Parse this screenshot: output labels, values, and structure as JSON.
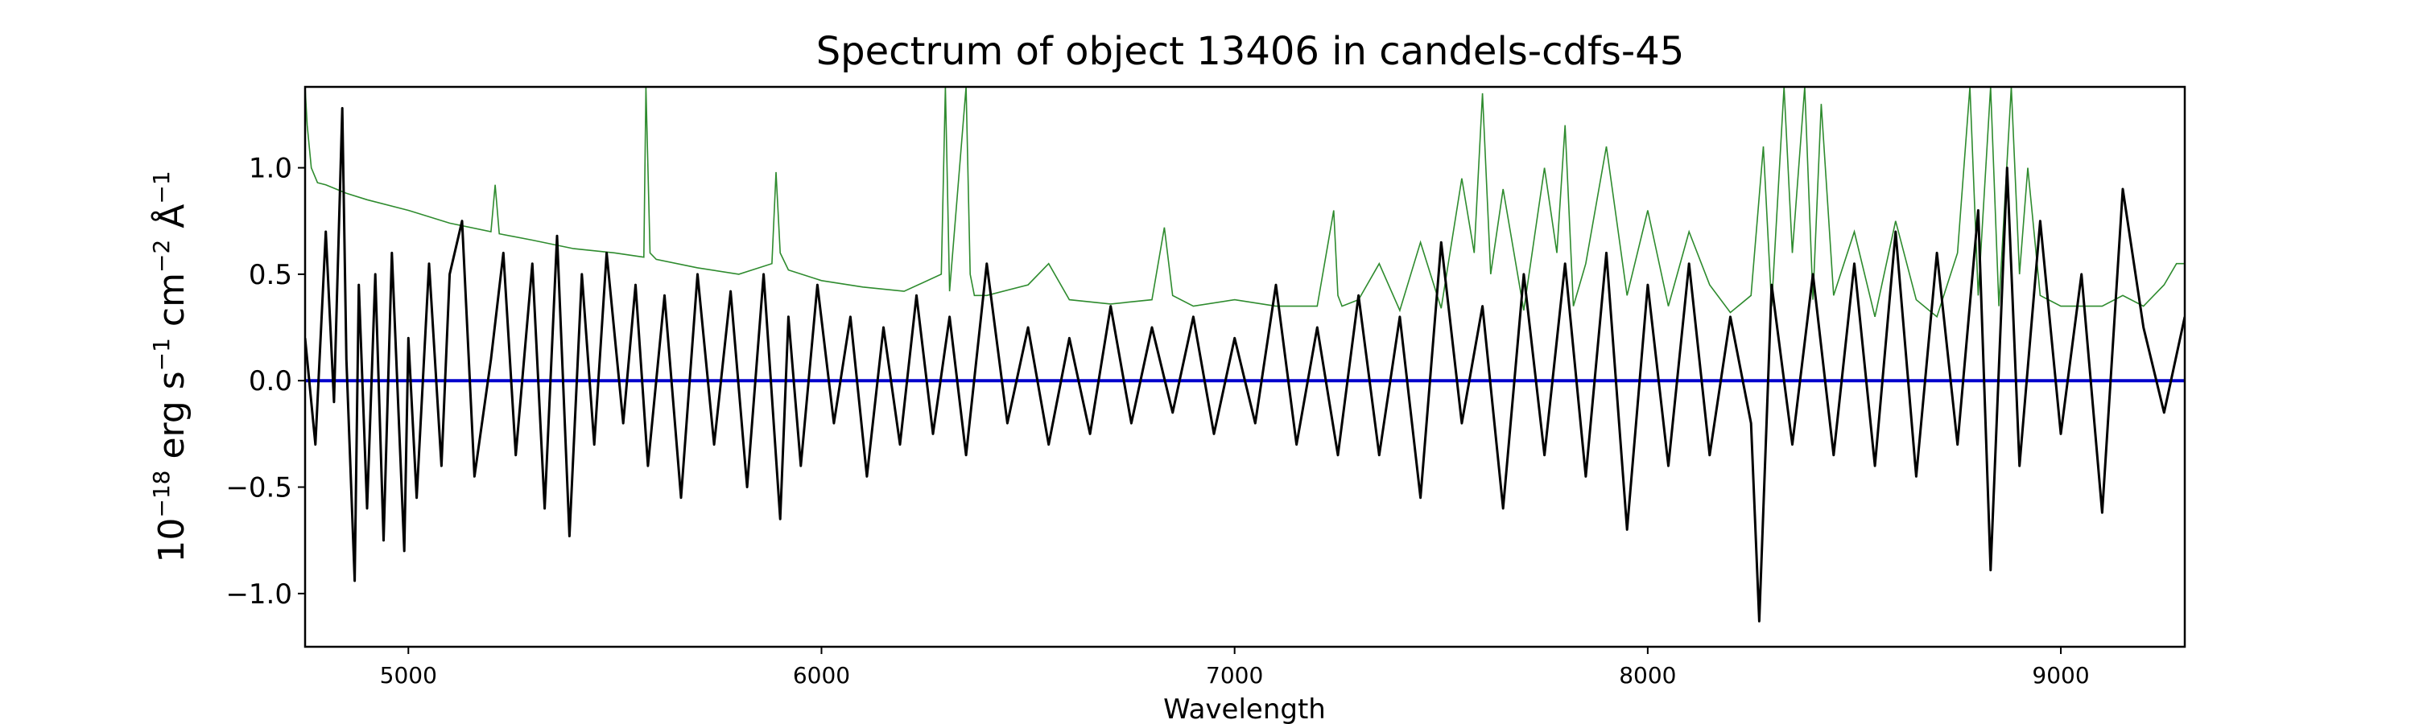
{
  "chart_data": {
    "type": "line",
    "title": "Spectrum of object 13406 in candels-cdfs-45",
    "xlabel": "Wavelength",
    "ylabel": {
      "base": "10",
      "exp1": "−18",
      "erg": " erg s",
      "exp2": "−1",
      "cm": " cm",
      "exp3": "−2",
      "ang": " Å",
      "exp4": "−1"
    },
    "xlim": [
      4750,
      9300
    ],
    "ylim": [
      -1.25,
      1.38
    ],
    "x_ticks": [
      5000,
      6000,
      7000,
      8000,
      9000
    ],
    "x_tick_labels": [
      "5000",
      "6000",
      "7000",
      "8000",
      "9000"
    ],
    "y_ticks": [
      -1.0,
      -0.5,
      0.0,
      0.5,
      1.0
    ],
    "y_tick_labels": [
      "−1.0",
      "−0.5",
      "0.0",
      "0.5",
      "1.0"
    ],
    "grid": false,
    "colors": {
      "flux": "#000000",
      "error": "#2e8b2e",
      "zero": "#0000cc"
    },
    "series": [
      {
        "role": "flux",
        "x": [
          4750,
          4775,
          4800,
          4820,
          4840,
          4850,
          4870,
          4880,
          4900,
          4920,
          4940,
          4960,
          4990,
          5000,
          5020,
          5050,
          5080,
          5100,
          5130,
          5160,
          5200,
          5230,
          5260,
          5300,
          5330,
          5360,
          5390,
          5420,
          5450,
          5480,
          5520,
          5550,
          5580,
          5620,
          5660,
          5700,
          5740,
          5780,
          5820,
          5860,
          5900,
          5920,
          5950,
          5990,
          6030,
          6070,
          6110,
          6150,
          6190,
          6230,
          6270,
          6310,
          6350,
          6400,
          6450,
          6500,
          6550,
          6600,
          6650,
          6700,
          6750,
          6800,
          6850,
          6900,
          6950,
          7000,
          7050,
          7100,
          7150,
          7200,
          7250,
          7300,
          7350,
          7400,
          7450,
          7500,
          7550,
          7600,
          7650,
          7700,
          7750,
          7800,
          7850,
          7900,
          7950,
          8000,
          8050,
          8100,
          8150,
          8200,
          8250,
          8270,
          8300,
          8350,
          8400,
          8450,
          8500,
          8550,
          8600,
          8650,
          8700,
          8750,
          8800,
          8830,
          8870,
          8900,
          8950,
          9000,
          9050,
          9100,
          9150,
          9200,
          9250,
          9300
        ],
        "y": [
          0.2,
          -0.3,
          0.7,
          -0.1,
          1.28,
          0.1,
          -0.94,
          0.45,
          -0.6,
          0.5,
          -0.75,
          0.6,
          -0.8,
          0.2,
          -0.55,
          0.55,
          -0.4,
          0.5,
          0.75,
          -0.45,
          0.1,
          0.6,
          -0.35,
          0.55,
          -0.6,
          0.68,
          -0.73,
          0.5,
          -0.3,
          0.6,
          -0.2,
          0.45,
          -0.4,
          0.4,
          -0.55,
          0.5,
          -0.3,
          0.42,
          -0.5,
          0.5,
          -0.65,
          0.3,
          -0.4,
          0.45,
          -0.2,
          0.3,
          -0.45,
          0.25,
          -0.3,
          0.4,
          -0.25,
          0.3,
          -0.35,
          0.55,
          -0.2,
          0.25,
          -0.3,
          0.2,
          -0.25,
          0.35,
          -0.2,
          0.25,
          -0.15,
          0.3,
          -0.25,
          0.2,
          -0.2,
          0.45,
          -0.3,
          0.25,
          -0.35,
          0.4,
          -0.35,
          0.3,
          -0.55,
          0.65,
          -0.2,
          0.35,
          -0.6,
          0.5,
          -0.35,
          0.55,
          -0.45,
          0.6,
          -0.7,
          0.45,
          -0.4,
          0.55,
          -0.35,
          0.3,
          -0.2,
          -1.13,
          0.45,
          -0.3,
          0.5,
          -0.35,
          0.55,
          -0.4,
          0.7,
          -0.45,
          0.6,
          -0.3,
          0.8,
          -0.89,
          1.0,
          -0.4,
          0.75,
          -0.25,
          0.5,
          -0.62,
          0.9,
          0.25,
          -0.15,
          0.3
        ]
      },
      {
        "role": "error",
        "x": [
          4750,
          4755,
          4765,
          4780,
          4800,
          4850,
          4900,
          5000,
          5100,
          5200,
          5210,
          5220,
          5300,
          5400,
          5500,
          5570,
          5575,
          5585,
          5600,
          5700,
          5800,
          5880,
          5890,
          5900,
          5920,
          6000,
          6100,
          6200,
          6290,
          6300,
          6310,
          6350,
          6360,
          6370,
          6400,
          6500,
          6550,
          6600,
          6700,
          6800,
          6830,
          6850,
          6900,
          7000,
          7100,
          7200,
          7240,
          7250,
          7260,
          7300,
          7350,
          7400,
          7450,
          7500,
          7550,
          7580,
          7600,
          7620,
          7650,
          7700,
          7750,
          7780,
          7800,
          7820,
          7850,
          7900,
          7950,
          8000,
          8050,
          8100,
          8150,
          8200,
          8250,
          8280,
          8300,
          8330,
          8350,
          8380,
          8400,
          8420,
          8450,
          8500,
          8550,
          8600,
          8650,
          8700,
          8750,
          8780,
          8800,
          8830,
          8850,
          8880,
          8900,
          8920,
          8950,
          9000,
          9050,
          9100,
          9150,
          9200,
          9250,
          9280,
          9300
        ],
        "y": [
          1.38,
          1.2,
          1.0,
          0.93,
          0.92,
          0.88,
          0.85,
          0.8,
          0.74,
          0.7,
          0.92,
          0.69,
          0.66,
          0.62,
          0.6,
          0.58,
          1.38,
          0.6,
          0.57,
          0.53,
          0.5,
          0.55,
          0.98,
          0.6,
          0.52,
          0.47,
          0.44,
          0.42,
          0.5,
          1.38,
          0.42,
          1.38,
          0.5,
          0.4,
          0.4,
          0.45,
          0.55,
          0.38,
          0.36,
          0.38,
          0.72,
          0.4,
          0.35,
          0.38,
          0.35,
          0.35,
          0.8,
          0.4,
          0.35,
          0.38,
          0.55,
          0.33,
          0.65,
          0.34,
          0.95,
          0.6,
          1.35,
          0.5,
          0.9,
          0.33,
          1.0,
          0.6,
          1.2,
          0.35,
          0.55,
          1.1,
          0.4,
          0.8,
          0.35,
          0.7,
          0.45,
          0.32,
          0.4,
          1.1,
          0.35,
          1.38,
          0.6,
          1.38,
          0.38,
          1.3,
          0.4,
          0.7,
          0.3,
          0.75,
          0.38,
          0.3,
          0.6,
          1.38,
          0.4,
          1.38,
          0.35,
          1.38,
          0.5,
          1.0,
          0.4,
          0.35,
          0.35,
          0.35,
          0.4,
          0.35,
          0.45,
          0.55,
          0.55
        ]
      }
    ]
  }
}
